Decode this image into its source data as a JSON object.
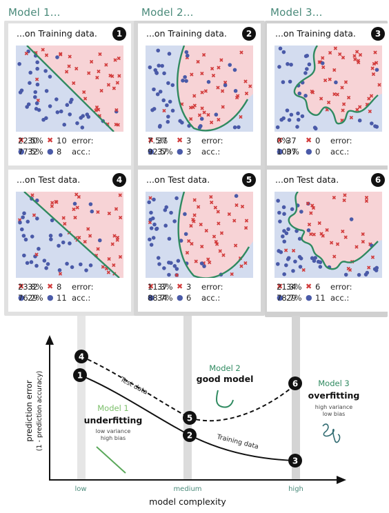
{
  "models": [
    {
      "title": "Model 1...",
      "train": {
        "heading": "...on Training data.",
        "badge": "1",
        "xx": "30",
        "xo": "10",
        "ox": "32",
        "oo": "8",
        "error_label": "error:",
        "error": "22.5%",
        "acc_label": "acc.:",
        "acc": "77.5%"
      },
      "test": {
        "heading": "...on Test data.",
        "badge": "4",
        "xx": "32",
        "xo": "8",
        "ox": "29",
        "oo": "11",
        "error_label": "error:",
        "error": "23.8%",
        "acc_label": "acc.:",
        "acc": "76.2%"
      }
    },
    {
      "title": "Model 2...",
      "train": {
        "heading": "...on Training data.",
        "badge": "2",
        "xx": "37",
        "xo": "3",
        "ox": "37",
        "oo": "3",
        "error_label": "error:",
        "error": "7.5%",
        "acc_label": "acc.:",
        "acc": "92.5%"
      },
      "test": {
        "heading": "...on Test data.",
        "badge": "5",
        "xx": "37",
        "xo": "3",
        "ox": "34",
        "oo": "6",
        "error_label": "error:",
        "error": "11.3%",
        "acc_label": "acc.:",
        "acc": "88.7%"
      }
    },
    {
      "title": "Model 3...",
      "train": {
        "heading": "...on Training data.",
        "badge": "3",
        "xx": "37",
        "xo": "0",
        "ox": "37",
        "oo": "0",
        "error_label": "error:",
        "error": "0%",
        "acc_label": "acc.:",
        "acc": "100%"
      },
      "test": {
        "heading": "...on Test data.",
        "badge": "6",
        "xx": "34",
        "xo": "6",
        "ox": "29",
        "oo": "11",
        "error_label": "error:",
        "error": "21.3%",
        "acc_label": "acc.:",
        "acc": "78.7%"
      }
    }
  ],
  "colors": {
    "red_region": "#f7d3d6",
    "blue_region": "#d3dcef",
    "x_marker": "#d23c3c",
    "o_marker": "#4a5aa8",
    "boundary": "#2f8a60",
    "model_title": "#4a8a7a"
  },
  "chart": {
    "ylabel": "prediction error",
    "ylabel2": "(1 - prediction accuracy)",
    "xlabel": "model complexity",
    "ticks": {
      "low": "low",
      "medium": "medium",
      "high": "high"
    },
    "test_label": "Test data",
    "train_label": "Training data",
    "m1": {
      "name": "Model 1",
      "verdict": "underfitting",
      "note1": "low variance",
      "note2": "high bias"
    },
    "m2": {
      "name": "Model 2",
      "verdict": "good model"
    },
    "m3": {
      "name": "Model 3",
      "verdict": "overfitting",
      "note1": "high variance",
      "note2": "low bias"
    },
    "badges": [
      "1",
      "2",
      "3",
      "4",
      "5",
      "6"
    ]
  }
}
